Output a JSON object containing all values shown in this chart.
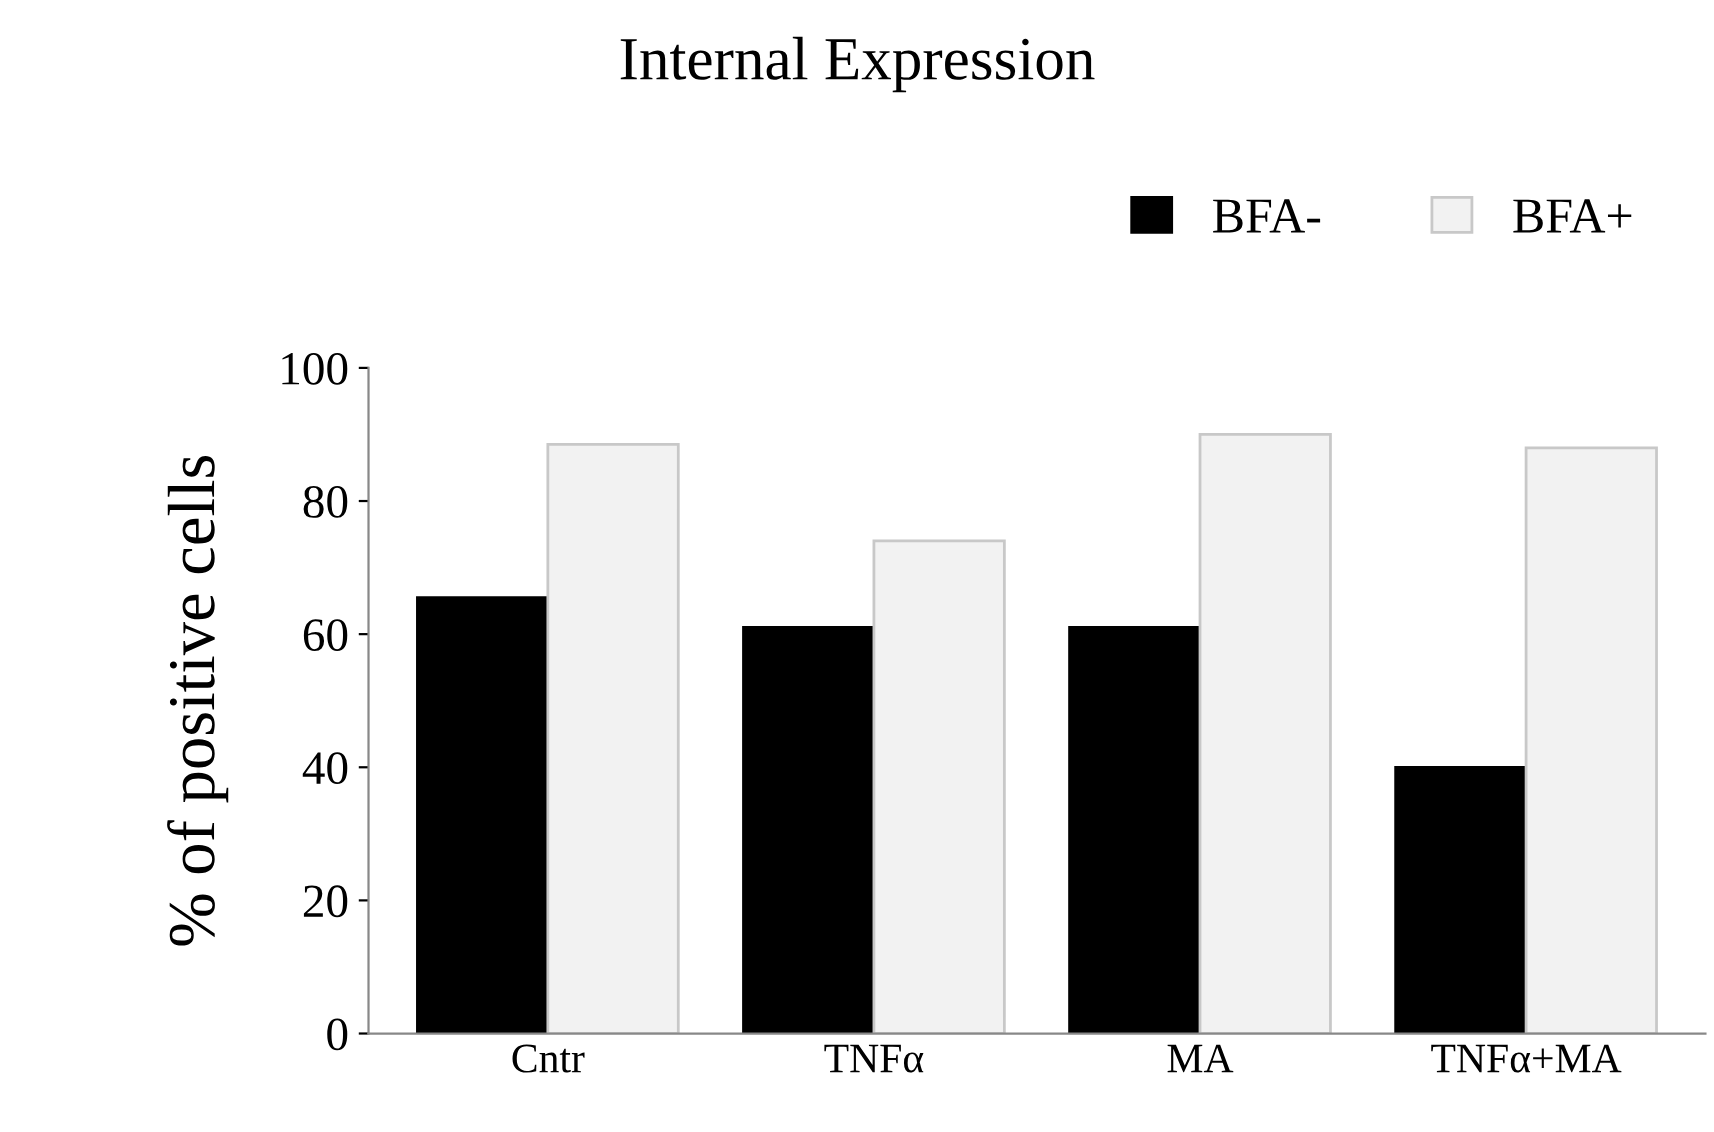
{
  "chart_data": {
    "type": "bar",
    "title": "Internal Expression",
    "ylabel": "% of positive cells",
    "categories": [
      "Cntr",
      "TNFα",
      "MA",
      "TNFα+MA"
    ],
    "series": [
      {
        "name": "BFA-",
        "color": "#000000",
        "values": [
          65.5,
          61,
          61,
          40
        ]
      },
      {
        "name": "BFA+",
        "color": "#f2f2f2",
        "values": [
          88.5,
          74,
          90,
          88
        ]
      }
    ],
    "ylim": [
      0,
      100
    ],
    "yticks": [
      0,
      20,
      40,
      60,
      80,
      100
    ],
    "grid": false,
    "legend": "top right"
  }
}
